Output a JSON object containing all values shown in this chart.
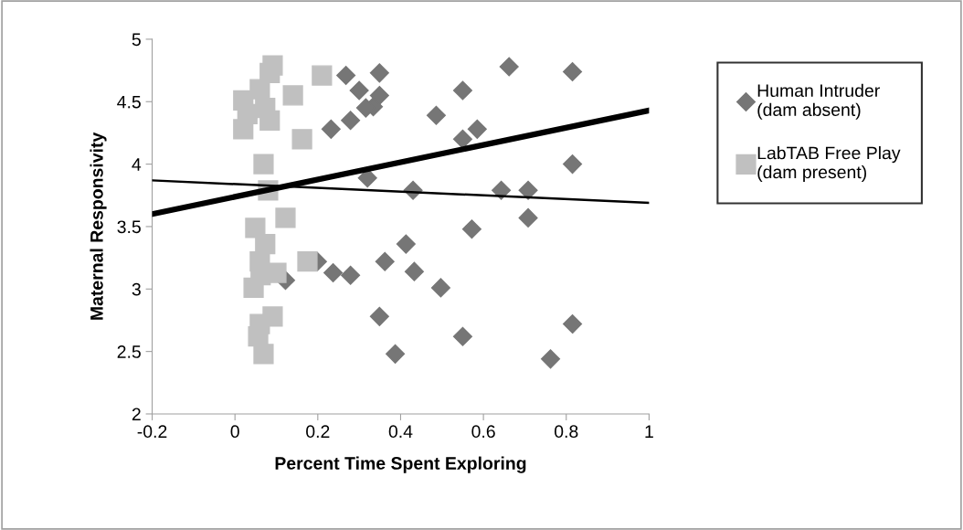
{
  "chart_data": {
    "type": "scatter",
    "xlabel": "Percent Time Spent Exploring",
    "ylabel": "Maternal Responsivity",
    "xlim": [
      -0.2,
      1
    ],
    "xticks": [
      {
        "value": -0.2,
        "label": "-0.2"
      },
      0,
      0.2,
      0.4,
      0.6,
      0.8,
      1
    ],
    "ylim": [
      2,
      5
    ],
    "yticks": [
      2,
      2.5,
      3,
      3.5,
      4,
      4.5,
      5
    ],
    "grid": false,
    "legend": "right",
    "series": [
      {
        "name": "Human Intruder\n(dam absent)",
        "marker": "diamond",
        "color": "#767676",
        "x": [
          0.268,
          0.349,
          0.3,
          0.349,
          0.334,
          0.316,
          0.279,
          0.232,
          0.32,
          0.43,
          0.662,
          0.815,
          0.55,
          0.486,
          0.585,
          0.55,
          0.815,
          0.643,
          0.708,
          0.708,
          0.572,
          0.413,
          0.362,
          0.433,
          0.497,
          0.349,
          0.55,
          0.815,
          0.387,
          0.762,
          0.237,
          0.279,
          0.199,
          0.122
        ],
        "values": [
          4.71,
          4.73,
          4.59,
          4.55,
          4.46,
          4.45,
          4.35,
          4.28,
          3.89,
          3.79,
          4.78,
          4.74,
          4.59,
          4.39,
          4.28,
          4.2,
          4.0,
          3.79,
          3.79,
          3.57,
          3.48,
          3.36,
          3.22,
          3.14,
          3.01,
          2.78,
          2.62,
          2.72,
          2.48,
          2.44,
          3.13,
          3.11,
          3.22,
          3.07
        ]
      },
      {
        "name": "LabTAB Free Play\n(dam present)",
        "marker": "square",
        "color": "#c0c0c0",
        "x": [
          0.091,
          0.084,
          0.06,
          0.02,
          0.03,
          0.02,
          0.073,
          0.084,
          0.14,
          0.21,
          0.162,
          0.069,
          0.08,
          0.122,
          0.049,
          0.073,
          0.06,
          0.1,
          0.062,
          0.045,
          0.091,
          0.06,
          0.056,
          0.069,
          0.175
        ],
        "values": [
          4.79,
          4.73,
          4.6,
          4.51,
          4.4,
          4.28,
          4.45,
          4.35,
          4.55,
          4.71,
          4.2,
          4.0,
          3.79,
          3.57,
          3.49,
          3.36,
          3.22,
          3.13,
          3.11,
          3.01,
          2.78,
          2.72,
          2.62,
          2.48,
          3.22
        ]
      },
      {
        "type": "line",
        "marker": "none",
        "color": "#000000",
        "x": [
          -0.2,
          1
        ],
        "values": [
          3.6,
          4.43
        ]
      },
      {
        "type": "line",
        "marker": "none",
        "color": "#000000",
        "x": [
          -0.2,
          1
        ],
        "values": [
          3.87,
          3.69
        ]
      }
    ]
  }
}
